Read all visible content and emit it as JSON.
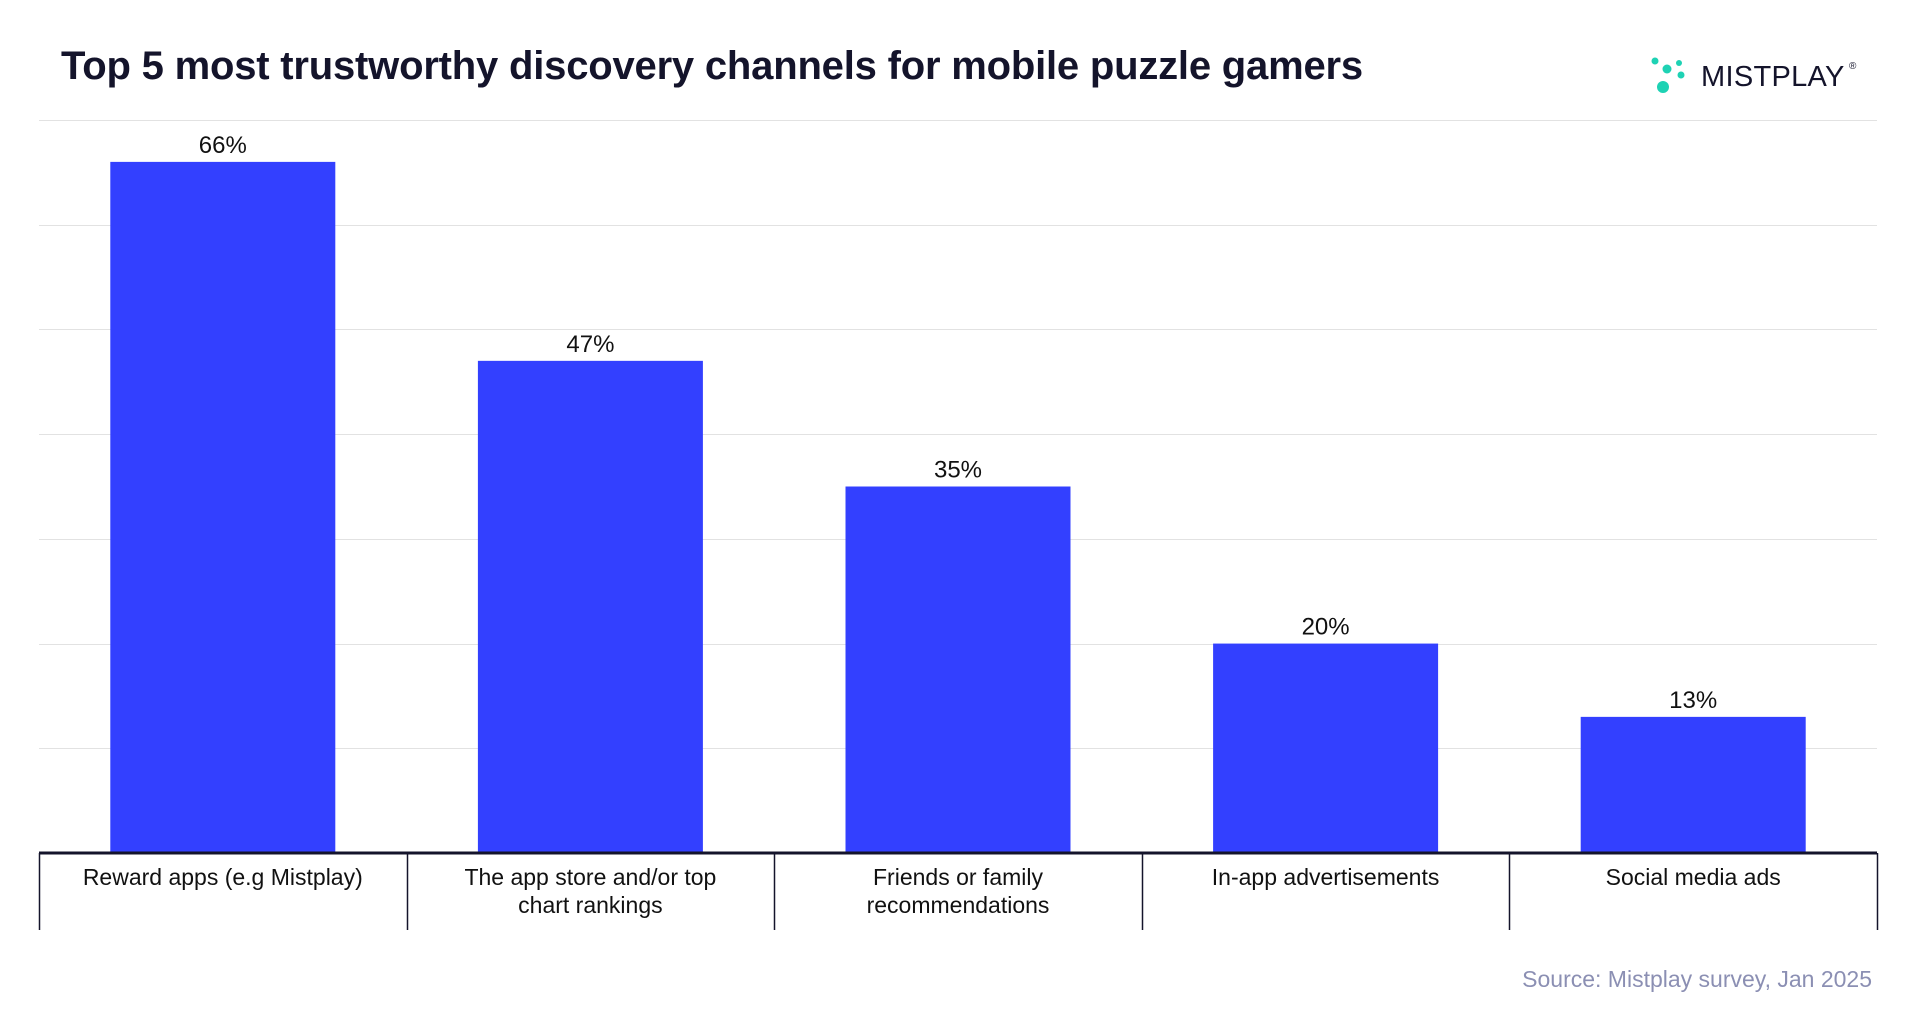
{
  "header": {
    "title": "Top 5 most trustworthy discovery channels for mobile puzzle gamers",
    "logo_text": "MISTPLAY",
    "logo_reg": "®"
  },
  "footer": {
    "source": "Source: Mistplay survey, Jan 2025"
  },
  "colors": {
    "bar": "#3340ff",
    "logo_accent": "#1ed2b4",
    "title": "#14142b",
    "source": "#8b8fb3",
    "grid": "#e2e2e2",
    "axis": "#14142b"
  },
  "chart_data": {
    "type": "bar",
    "title": "Top 5 most trustworthy discovery channels for mobile puzzle gamers",
    "xlabel": "",
    "ylabel": "",
    "ylim": [
      0,
      70
    ],
    "grid": true,
    "value_suffix": "%",
    "categories": [
      [
        "Reward apps (e.g Mistplay)"
      ],
      [
        "The app store and/or top",
        "chart rankings"
      ],
      [
        "Friends or family",
        "recommendations"
      ],
      [
        "In-app advertisements"
      ],
      [
        "Social media ads"
      ]
    ],
    "values": [
      66,
      47,
      35,
      20,
      13
    ]
  }
}
